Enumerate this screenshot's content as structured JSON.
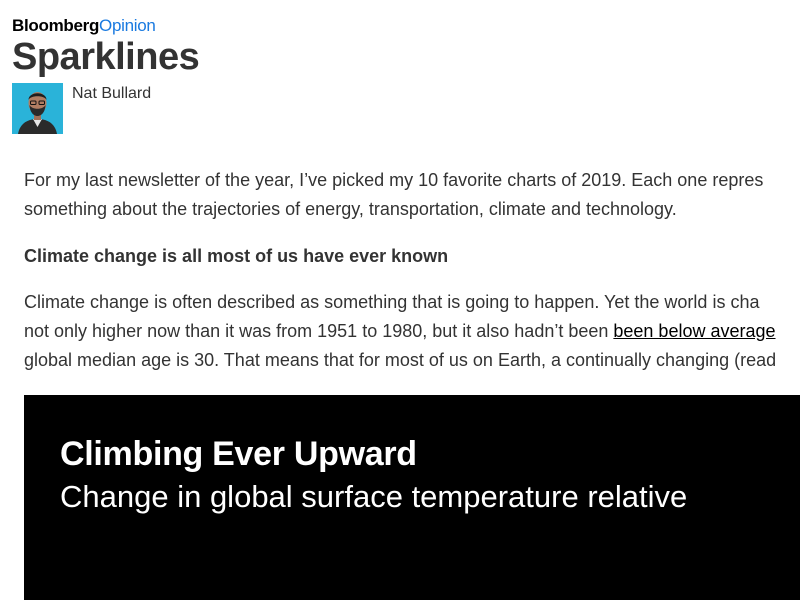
{
  "masthead": {
    "brand": "Bloomberg",
    "section": "Opinion"
  },
  "article": {
    "title": "Sparklines",
    "author": "Nat Bullard",
    "paragraphs": [
      {
        "lines": [
          "For my last newsletter of the year, I’ve picked my 10 favorite charts of 2019. Each one repres",
          "something about the trajectories of energy, transportation, climate and technology."
        ]
      }
    ],
    "heading": "Climate change is all most of us have ever known",
    "paragraph2": {
      "line1": "Climate change is often described as something that is going to happen. Yet the world is cha",
      "line2_before": "not only higher now than it was from 1951 to 1980, but it also hadn’t been ",
      "line2_link": "been below average",
      "line3": "global median age is 30. That means that for most of us on Earth, a continually changing (read"
    }
  },
  "chart": {
    "title": "Climbing Ever Upward",
    "subtitle": "Change in global surface temperature relative"
  },
  "colors": {
    "accent": "#1a7ae0",
    "avatar_bg": "#2ab3d9",
    "chart_bg": "#000000"
  }
}
